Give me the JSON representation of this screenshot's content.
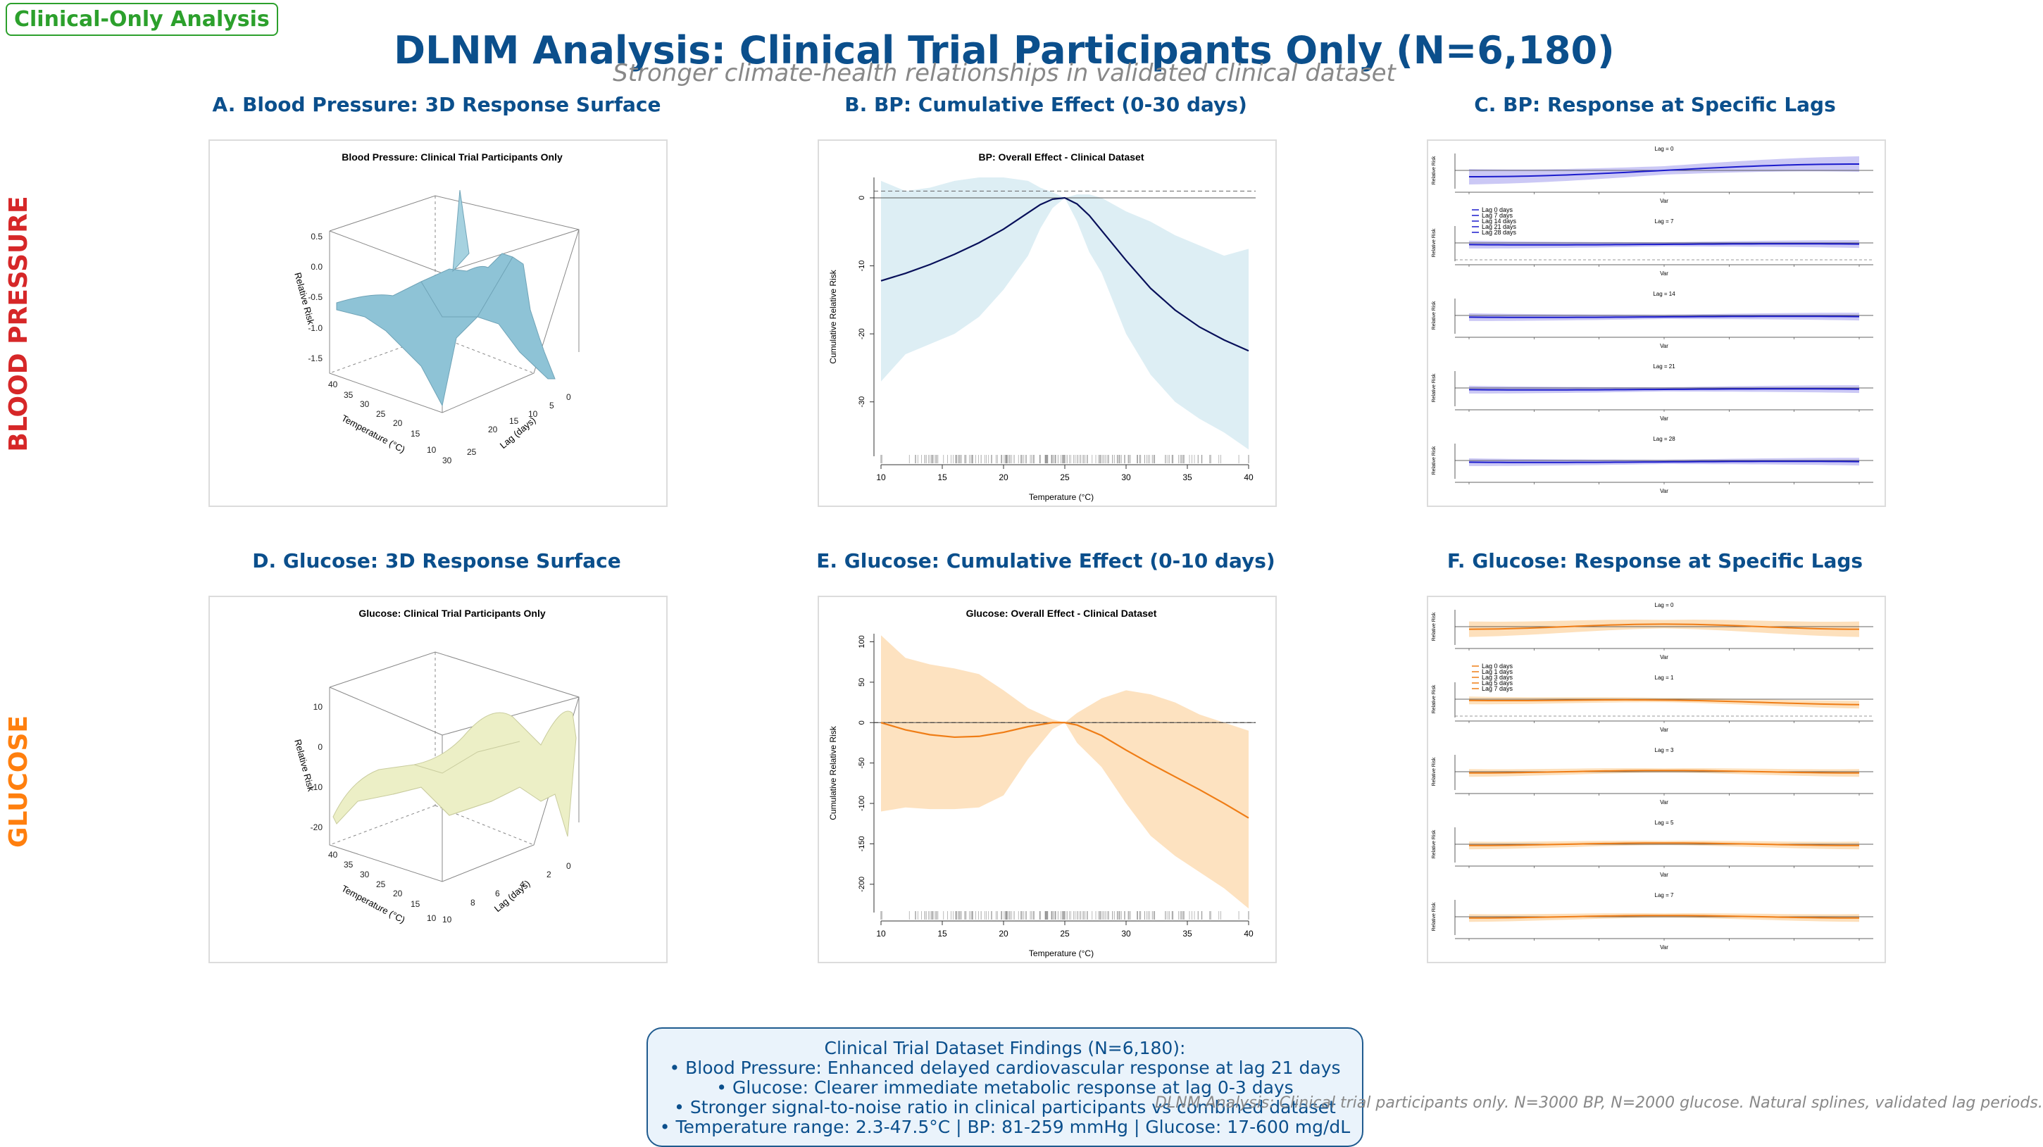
{
  "badge": "Clinical-Only Analysis",
  "title": "DLNM Analysis: Clinical Trial Participants Only (N=6,180)",
  "subtitle": "Stronger climate-health relationships in validated clinical dataset",
  "row_labels": {
    "bp": "BLOOD PRESSURE",
    "glucose": "GLUCOSE"
  },
  "colors": {
    "bp_label": "#d62728",
    "glucose_label": "#ff7f0e",
    "title": "#0b4f8c",
    "bp_surface": "#8ec3d6",
    "glucose_surface": "#ecefc6",
    "bp_line": "#08105a",
    "bp_band": "#cfe7f0",
    "glucose_line": "#ef7d16",
    "glucose_band": "#fcd5a5",
    "lag_line_bp": "#1a1acc",
    "lag_band_bp": "#b9b6f2"
  },
  "panels": {
    "a": {
      "title": "A. Blood Pressure: 3D Response Surface",
      "plot_title": "Blood Pressure: Clinical Trial Participants Only",
      "zlabel": "Relative Risk",
      "xlabel": "Temperature (°C)",
      "ylabel": "Lag (days)",
      "z_ticks": [
        "0.5",
        "0.0",
        "-0.5",
        "-1.0",
        "-1.5"
      ],
      "x_ticks": [
        "40",
        "35",
        "30",
        "25",
        "20",
        "15",
        "10"
      ],
      "y_ticks": [
        "0",
        "5",
        "10",
        "15",
        "20",
        "25",
        "30"
      ]
    },
    "b": {
      "title": "B. BP: Cumulative Effect (0-30 days)",
      "plot_title": "BP: Overall Effect - Clinical Dataset",
      "xlabel": "Temperature (°C)",
      "ylabel": "Cumulative Relative Risk"
    },
    "c": {
      "title": "C. BP: Response at Specific Lags",
      "legend": [
        "Lag 0 days",
        "Lag 7 days",
        "Lag 14 days",
        "Lag 21 days",
        "Lag 28 days"
      ],
      "subtitles": [
        "Lag = 0",
        "Lag = 7",
        "Lag = 14",
        "Lag = 21",
        "Lag = 28"
      ],
      "ylabel": "Relative Risk",
      "xlabel": "Var"
    },
    "d": {
      "title": "D. Glucose: 3D Response Surface",
      "plot_title": "Glucose: Clinical Trial Participants Only",
      "zlabel": "Relative Risk",
      "xlabel": "Temperature (°C)",
      "ylabel": "Lag (days)",
      "z_ticks": [
        "10",
        "0",
        "-10",
        "-20"
      ],
      "x_ticks": [
        "40",
        "35",
        "30",
        "25",
        "20",
        "15",
        "10"
      ],
      "y_ticks": [
        "0",
        "2",
        "4",
        "6",
        "8",
        "10"
      ]
    },
    "e": {
      "title": "E. Glucose: Cumulative Effect (0-10 days)",
      "plot_title": "Glucose: Overall Effect - Clinical Dataset",
      "xlabel": "Temperature (°C)",
      "ylabel": "Cumulative Relative Risk"
    },
    "f": {
      "title": "F. Glucose: Response at Specific Lags",
      "legend": [
        "Lag 0 days",
        "Lag 1 days",
        "Lag 3 days",
        "Lag 5 days",
        "Lag 7 days"
      ],
      "subtitles": [
        "Lag = 0",
        "Lag = 1",
        "Lag = 3",
        "Lag = 5",
        "Lag = 7"
      ],
      "ylabel": "Relative Risk",
      "xlabel": "Var"
    }
  },
  "findings": [
    "Clinical Trial Dataset Findings (N=6,180):",
    "• Blood Pressure: Enhanced delayed cardiovascular response at lag 21 days",
    "• Glucose: Clearer immediate metabolic response at lag 0-3 days",
    "• Stronger signal-to-noise ratio in clinical participants vs combined dataset",
    "• Temperature range: 2.3-47.5°C | BP: 81-259 mmHg | Glucose: 17-600 mg/dL"
  ],
  "footnote": "DLNM Analysis: Clinical trial participants only. N=3000 BP, N=2000 glucose. Natural splines, validated lag periods.",
  "chart_data": [
    {
      "panel": "B",
      "type": "line",
      "title": "BP: Overall Effect - Clinical Dataset",
      "xlabel": "Temperature (°C)",
      "ylabel": "Cumulative Relative Risk",
      "xlim": [
        10,
        40
      ],
      "ylim": [
        -38,
        3
      ],
      "x_ticks": [
        10,
        15,
        20,
        25,
        30,
        35,
        40
      ],
      "y_ticks": [
        0,
        -10,
        -20,
        -30
      ],
      "x": [
        10,
        12,
        14,
        16,
        18,
        20,
        22,
        23,
        24,
        25,
        26,
        27,
        28,
        30,
        32,
        34,
        36,
        38,
        40
      ],
      "fit": [
        -12.2,
        -11.1,
        -9.8,
        -8.3,
        -6.6,
        -4.6,
        -2.2,
        -1.0,
        -0.2,
        0.0,
        -0.9,
        -2.6,
        -4.8,
        -9.2,
        -13.3,
        -16.5,
        -19.0,
        -20.9,
        -22.5
      ],
      "lower": [
        -27,
        -23,
        -21.5,
        -20,
        -17.5,
        -13.5,
        -8.5,
        -4.5,
        -1.5,
        0.0,
        -3.5,
        -8.0,
        -11.0,
        -20.0,
        -26.0,
        -30.0,
        -32.5,
        -34.5,
        -37.0
      ],
      "upper": [
        2.5,
        1.0,
        1.5,
        2.5,
        3.0,
        3.0,
        2.5,
        1.5,
        0.8,
        0.0,
        0.5,
        0.5,
        0.0,
        -2.0,
        -3.5,
        -5.5,
        -7.0,
        -8.5,
        -7.5
      ],
      "reference_line": 0,
      "dashed_line": 1
    },
    {
      "panel": "E",
      "type": "line",
      "title": "Glucose: Overall Effect - Clinical Dataset",
      "xlabel": "Temperature (°C)",
      "ylabel": "Cumulative Relative Risk",
      "xlim": [
        10,
        40
      ],
      "ylim": [
        -235,
        110
      ],
      "x_ticks": [
        10,
        15,
        20,
        25,
        30,
        35,
        40
      ],
      "y_ticks": [
        100,
        50,
        0,
        -50,
        -100,
        -150,
        -200
      ],
      "x": [
        10,
        12,
        14,
        16,
        18,
        20,
        22,
        24,
        25,
        26,
        28,
        30,
        32,
        34,
        36,
        38,
        40
      ],
      "fit": [
        0,
        -9,
        -15,
        -18,
        -17,
        -12,
        -5,
        0,
        0,
        -3,
        -16,
        -34,
        -51,
        -67,
        -83,
        -100,
        -118
      ],
      "lower": [
        -110,
        -105,
        -107,
        -107,
        -105,
        -90,
        -45,
        -8,
        0,
        -25,
        -55,
        -100,
        -140,
        -165,
        -185,
        -205,
        -230
      ],
      "upper": [
        108,
        80,
        72,
        67,
        60,
        40,
        18,
        4,
        0,
        12,
        30,
        40,
        35,
        25,
        10,
        0,
        -10
      ],
      "reference_line": 0
    }
  ]
}
